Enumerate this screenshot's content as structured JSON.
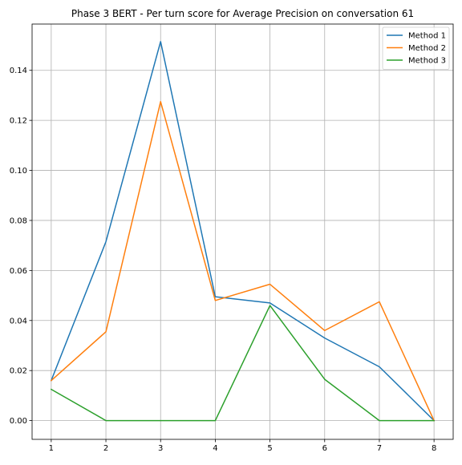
{
  "chart_data": {
    "type": "line",
    "title": "Phase 3 BERT - Per turn score for Average Precision on conversation 61",
    "xlabel": "",
    "ylabel": "",
    "x": [
      1,
      2,
      3,
      4,
      5,
      6,
      7,
      8
    ],
    "xlim": [
      0.65,
      8.35
    ],
    "ylim": [
      -0.0075,
      0.1585
    ],
    "yticks": [
      0.0,
      0.02,
      0.04,
      0.06,
      0.08,
      0.1,
      0.12,
      0.14
    ],
    "ytick_labels": [
      "0.00",
      "0.02",
      "0.04",
      "0.06",
      "0.08",
      "0.10",
      "0.12",
      "0.14"
    ],
    "xticks": [
      1,
      2,
      3,
      4,
      5,
      6,
      7,
      8
    ],
    "xtick_labels": [
      "1",
      "2",
      "3",
      "4",
      "5",
      "6",
      "7",
      "8"
    ],
    "grid": true,
    "legend_position": "top-right",
    "series": [
      {
        "name": "Method 1",
        "color": "#1f77b4",
        "values": [
          0.016,
          0.0715,
          0.1515,
          0.0495,
          0.047,
          0.033,
          0.0215,
          0.0
        ]
      },
      {
        "name": "Method 2",
        "color": "#ff7f0e",
        "values": [
          0.016,
          0.0355,
          0.1275,
          0.048,
          0.0545,
          0.036,
          0.0475,
          0.0
        ]
      },
      {
        "name": "Method 3",
        "color": "#2ca02c",
        "values": [
          0.0125,
          0.0,
          0.0,
          0.0,
          0.046,
          0.0165,
          0.0,
          0.0
        ]
      }
    ]
  }
}
